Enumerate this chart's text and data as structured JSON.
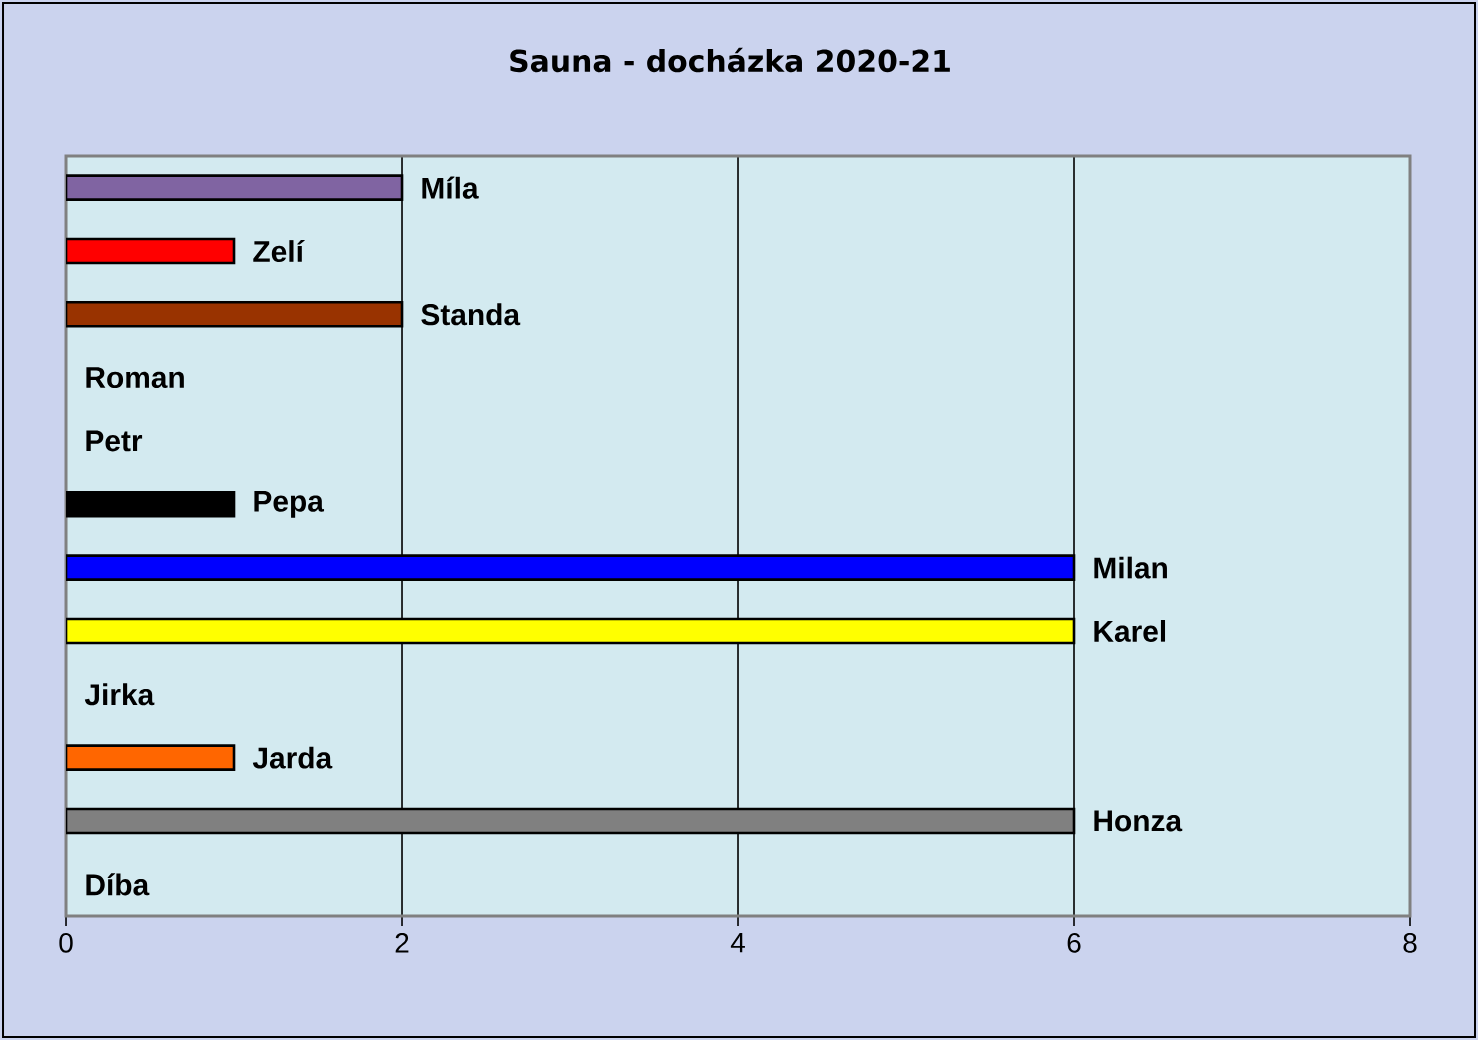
{
  "chart_data": {
    "type": "bar",
    "orientation": "horizontal",
    "title": "Sauna - docházka 2020-21",
    "categories": [
      "Míla",
      "Zelí",
      "Standa",
      "Roman",
      "Petr",
      "Pepa",
      "Milan",
      "Karel",
      "Jirka",
      "Jarda",
      "Honza",
      "Díba"
    ],
    "values": [
      2,
      1,
      2,
      0,
      0,
      1,
      6,
      6,
      0,
      1,
      6,
      0
    ],
    "colors": [
      "#8064a2",
      "#ff0000",
      "#993300",
      null,
      null,
      "#000000",
      "#0000ff",
      "#ffff00",
      null,
      "#ff6600",
      "#808080",
      null
    ],
    "xlim": [
      0,
      8
    ],
    "xticks": [
      0,
      2,
      4,
      6,
      8
    ],
    "grid": "x",
    "tick_labels": "x"
  }
}
